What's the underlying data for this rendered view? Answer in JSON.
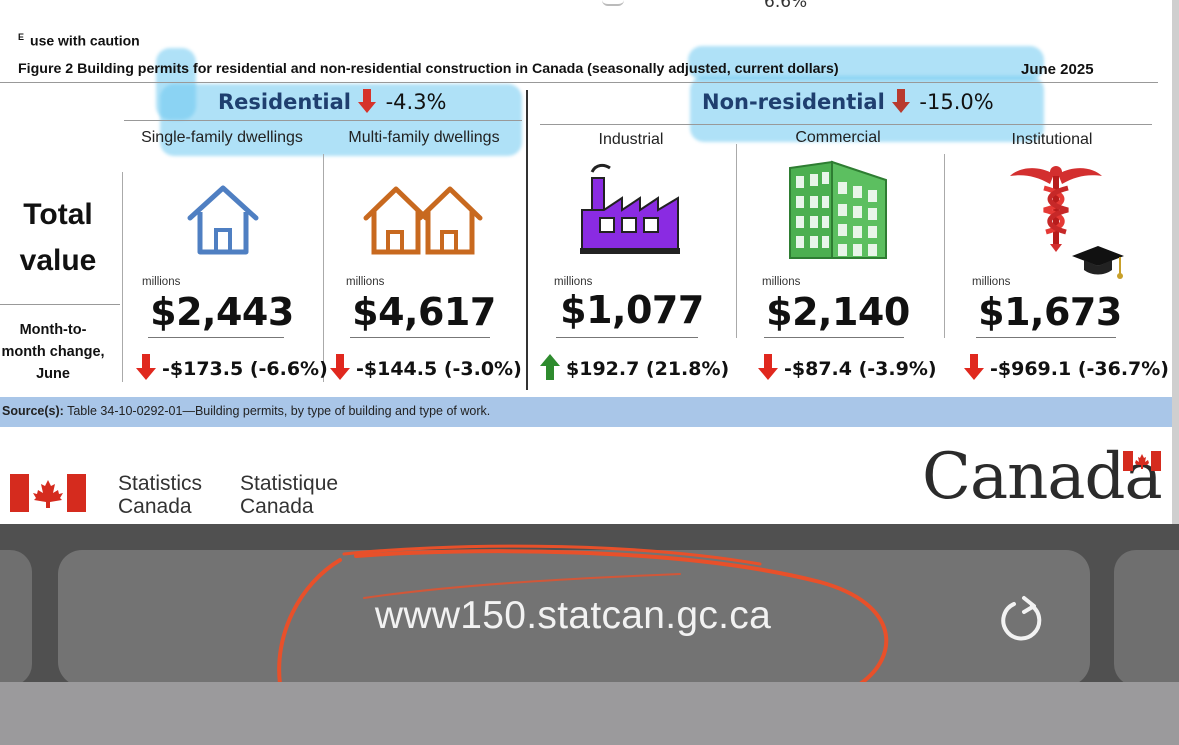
{
  "header": {
    "partial_top_value": "6.6%",
    "caution_mark": "E",
    "caution_text": "use with caution",
    "figure_title": "Figure 2  Building permits for residential and non-residential construction in Canada (seasonally adjusted, current dollars)",
    "figure_date": "June 2025"
  },
  "groups": {
    "residential": {
      "label": "Residential",
      "change": "-4.3%"
    },
    "nonresidential": {
      "label": "Non-residential",
      "change": "-15.0%"
    }
  },
  "row_labels": {
    "total_line1": "Total",
    "total_line2": "value",
    "mtm_line1": "Month-to-",
    "mtm_line2": "month change,",
    "mtm_line3": "June"
  },
  "categories": [
    {
      "label": "Single-family dwellings",
      "units": "millions",
      "value": "$2,443",
      "change": "-$173.5 (-6.6%)",
      "direction": "down",
      "icon": "house-icon"
    },
    {
      "label": "Multi-family dwellings",
      "units": "millions",
      "value": "$4,617",
      "change": "-$144.5 (-3.0%)",
      "direction": "down",
      "icon": "two-houses-icon"
    },
    {
      "label": "Industrial",
      "units": "millions",
      "value": "$1,077",
      "change": "$192.7 (21.8%)",
      "direction": "up",
      "icon": "factory-icon"
    },
    {
      "label": "Commercial",
      "units": "millions",
      "value": "$2,140",
      "change": "-$87.4 (-3.9%)",
      "direction": "down",
      "icon": "office-building-icon"
    },
    {
      "label": "Institutional",
      "units": "millions",
      "value": "$1,673",
      "change": "-$969.1 (-36.7%)",
      "direction": "down",
      "icon": "caduceus-graduation-cap-icon"
    }
  ],
  "source": {
    "label": "Source(s):",
    "text": " Table 34-10-0292-01—Building permits, by type of building and type of work."
  },
  "footer": {
    "en_line1": "Statistics",
    "en_line2": "Canada",
    "fr_line1": "Statistique",
    "fr_line2": "Canada",
    "wordmark": "Canada"
  },
  "browser": {
    "url": "www150.statcan.gc.ca",
    "reload_icon": "reload-icon"
  },
  "colors": {
    "down_arrow": "#e0281e",
    "up_arrow": "#2e8b2e",
    "house": "#4f7fc2",
    "multi_house": "#c8691f",
    "factory": "#8a2be2",
    "commercial": "#4caf50",
    "caduceus": "#d32f2f",
    "source_bar": "#a9c6e8",
    "highlighter": "#6ec8f0",
    "scribble": "#e8502a"
  }
}
